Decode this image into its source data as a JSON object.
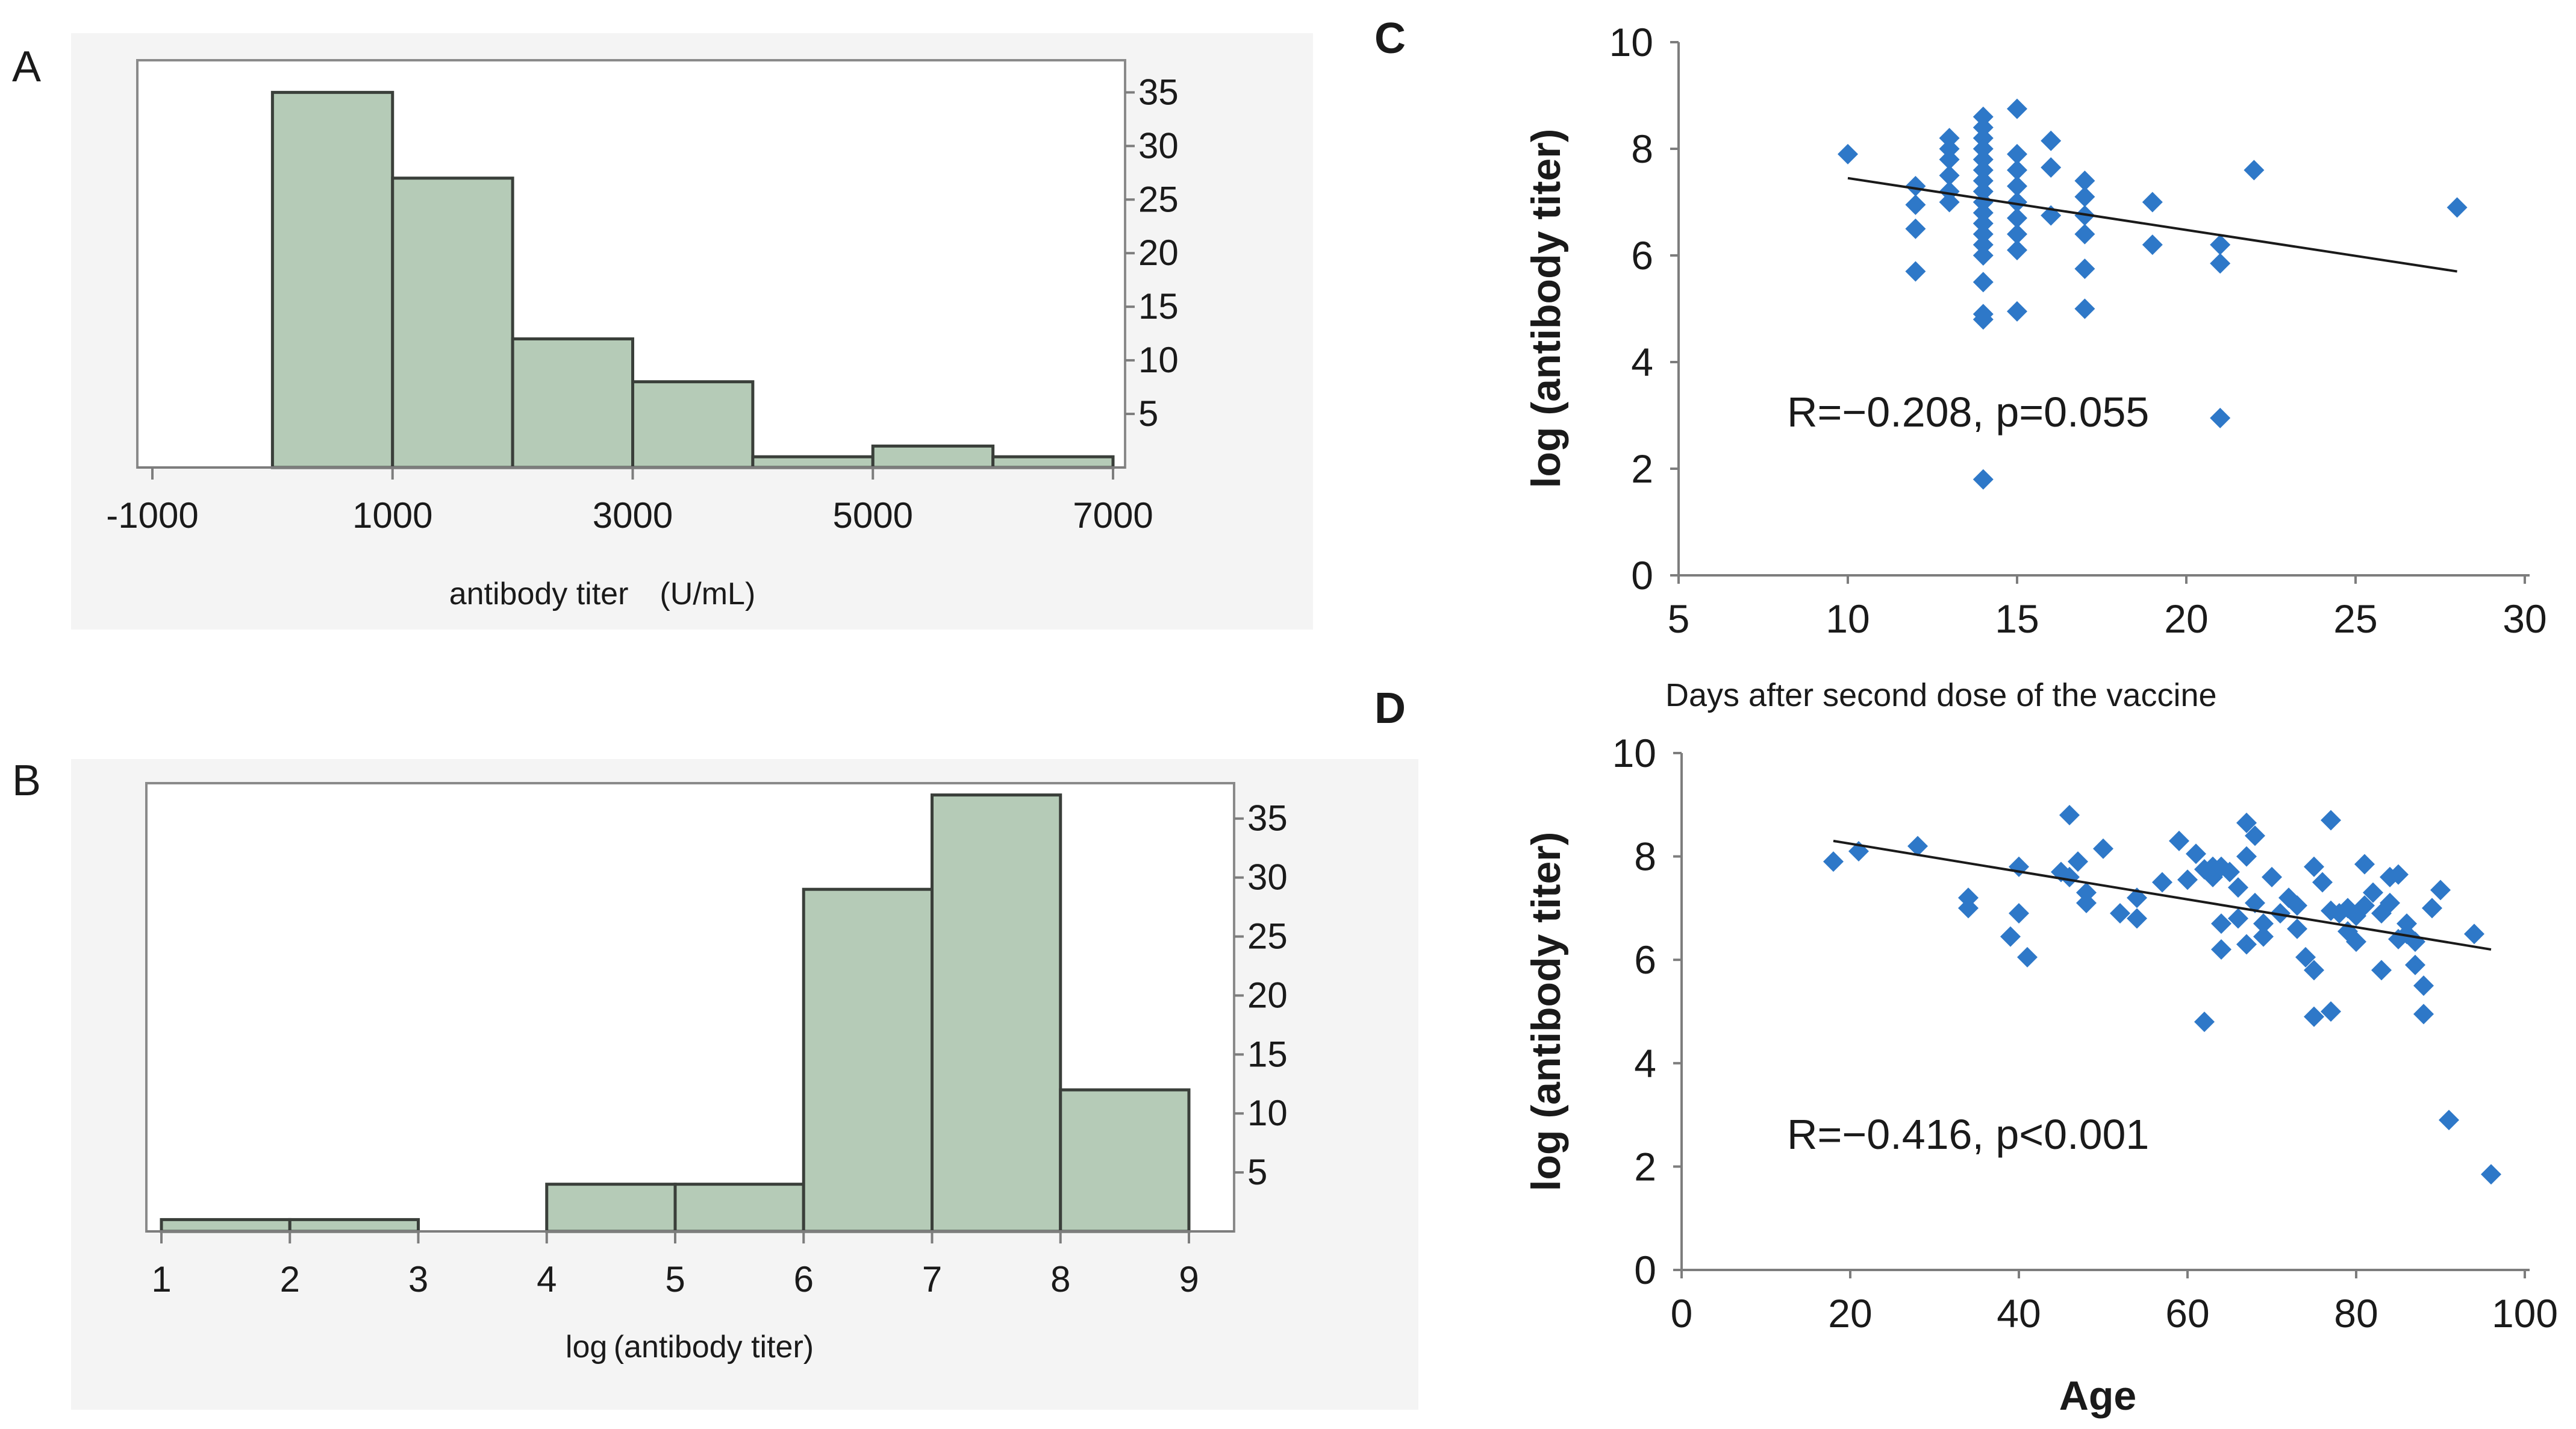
{
  "colors": {
    "bar_fill": "#b5cbb7",
    "bar_stroke": "#3a3f3a",
    "panel_bg": "#f4f4f4",
    "point": "#2e78c8",
    "axis": "#7d7d7d",
    "text": "#1a1a1a"
  },
  "panel_labels": {
    "a": "A",
    "b": "B",
    "c": "C",
    "d": "D"
  },
  "chart_data": [
    {
      "panel": "A",
      "type": "bar",
      "subtype": "histogram",
      "title": "",
      "xlabel": "antibody titer　(U/mL)",
      "ylabel": "",
      "xlim": [
        -1000,
        7000
      ],
      "x_ticks": [
        -1000,
        1000,
        3000,
        5000,
        7000
      ],
      "x_tick_labels": [
        "-1000",
        "1000",
        "3000",
        "5000",
        "7000"
      ],
      "ylim": [
        0,
        38
      ],
      "y_ticks": [
        5,
        10,
        15,
        20,
        25,
        30,
        35
      ],
      "y_tick_labels": [
        "5",
        "10",
        "15",
        "20",
        "25",
        "30",
        "35"
      ],
      "y_axis_side": "right",
      "bins": [
        {
          "from": 0,
          "to": 1000,
          "count": 35
        },
        {
          "from": 1000,
          "to": 2000,
          "count": 27
        },
        {
          "from": 2000,
          "to": 3000,
          "count": 12
        },
        {
          "from": 3000,
          "to": 4000,
          "count": 8
        },
        {
          "from": 4000,
          "to": 5000,
          "count": 1
        },
        {
          "from": 5000,
          "to": 6000,
          "count": 2
        },
        {
          "from": 6000,
          "to": 7000,
          "count": 1
        }
      ]
    },
    {
      "panel": "B",
      "type": "bar",
      "subtype": "histogram",
      "title": "",
      "xlabel": "log (antibody titer)",
      "ylabel": "",
      "xlim": [
        1,
        9
      ],
      "x_ticks": [
        1,
        2,
        3,
        4,
        5,
        6,
        7,
        8,
        9
      ],
      "x_tick_labels": [
        "1",
        "2",
        "3",
        "4",
        "5",
        "6",
        "7",
        "8",
        "9"
      ],
      "ylim": [
        0,
        38
      ],
      "y_ticks": [
        5,
        10,
        15,
        20,
        25,
        30,
        35
      ],
      "y_tick_labels": [
        "5",
        "10",
        "15",
        "20",
        "25",
        "30",
        "35"
      ],
      "y_axis_side": "right",
      "bins": [
        {
          "from": 1,
          "to": 2,
          "count": 1
        },
        {
          "from": 2,
          "to": 3,
          "count": 1
        },
        {
          "from": 4,
          "to": 5,
          "count": 4
        },
        {
          "from": 5,
          "to": 6,
          "count": 4
        },
        {
          "from": 6,
          "to": 7,
          "count": 29
        },
        {
          "from": 7,
          "to": 8,
          "count": 37
        },
        {
          "from": 8,
          "to": 9,
          "count": 12
        }
      ]
    },
    {
      "panel": "C",
      "type": "scatter",
      "title": "",
      "xlabel": "Days after second dose of the vaccine",
      "ylabel": "log (antibody titer)",
      "xlim": [
        5,
        30
      ],
      "x_ticks": [
        5,
        10,
        15,
        20,
        25,
        30
      ],
      "x_tick_labels": [
        "5",
        "10",
        "15",
        "20",
        "25",
        "30"
      ],
      "ylim": [
        0,
        10
      ],
      "y_ticks": [
        0,
        2,
        4,
        6,
        8,
        10
      ],
      "y_tick_labels": [
        "0",
        "2",
        "4",
        "6",
        "8",
        "10"
      ],
      "annotation": "R=−0.208, p=0.055",
      "trendline": {
        "x": [
          10,
          28
        ],
        "y": [
          7.45,
          5.7
        ]
      },
      "points": [
        [
          10,
          7.9
        ],
        [
          12,
          7.3
        ],
        [
          12,
          6.95
        ],
        [
          12,
          6.5
        ],
        [
          12,
          5.7
        ],
        [
          13,
          8.2
        ],
        [
          13,
          8.0
        ],
        [
          13,
          7.8
        ],
        [
          13,
          7.5
        ],
        [
          13,
          7.2
        ],
        [
          13,
          7.0
        ],
        [
          14,
          8.6
        ],
        [
          14,
          8.4
        ],
        [
          14,
          8.2
        ],
        [
          14,
          8.0
        ],
        [
          14,
          7.8
        ],
        [
          14,
          7.6
        ],
        [
          14,
          7.4
        ],
        [
          14,
          7.2
        ],
        [
          14,
          7.0
        ],
        [
          14,
          6.8
        ],
        [
          14,
          6.6
        ],
        [
          14,
          6.4
        ],
        [
          14,
          6.2
        ],
        [
          14,
          6.0
        ],
        [
          14,
          5.5
        ],
        [
          14,
          4.9
        ],
        [
          14,
          4.8
        ],
        [
          14,
          1.8
        ],
        [
          15,
          8.75
        ],
        [
          15,
          7.9
        ],
        [
          15,
          7.6
        ],
        [
          15,
          7.3
        ],
        [
          15,
          7.0
        ],
        [
          15,
          6.7
        ],
        [
          15,
          6.4
        ],
        [
          15,
          6.1
        ],
        [
          15,
          4.95
        ],
        [
          16,
          8.15
        ],
        [
          16,
          7.65
        ],
        [
          16,
          6.75
        ],
        [
          17,
          7.4
        ],
        [
          17,
          7.1
        ],
        [
          17,
          6.75
        ],
        [
          17,
          6.4
        ],
        [
          17,
          5.75
        ],
        [
          17,
          5.0
        ],
        [
          19,
          7.0
        ],
        [
          19,
          6.2
        ],
        [
          21,
          6.2
        ],
        [
          21,
          5.85
        ],
        [
          21,
          2.95
        ],
        [
          22,
          7.6
        ],
        [
          28,
          6.9
        ]
      ]
    },
    {
      "panel": "D",
      "type": "scatter",
      "title": "",
      "xlabel": "Age",
      "ylabel": "log (antibody titer)",
      "xlim": [
        0,
        100
      ],
      "x_ticks": [
        0,
        20,
        40,
        60,
        80,
        100
      ],
      "x_tick_labels": [
        "0",
        "20",
        "40",
        "60",
        "80",
        "100"
      ],
      "ylim": [
        0,
        10
      ],
      "y_ticks": [
        0,
        2,
        4,
        6,
        8,
        10
      ],
      "y_tick_labels": [
        "0",
        "2",
        "4",
        "6",
        "8",
        "10"
      ],
      "annotation": "R=−0.416, p<0.001",
      "trendline": {
        "x": [
          18,
          96
        ],
        "y": [
          8.3,
          6.2
        ]
      },
      "points": [
        [
          18,
          7.9
        ],
        [
          21,
          8.1
        ],
        [
          28,
          8.2
        ],
        [
          34,
          7.2
        ],
        [
          34,
          7.0
        ],
        [
          39,
          6.45
        ],
        [
          40,
          7.8
        ],
        [
          40,
          6.9
        ],
        [
          41,
          6.05
        ],
        [
          45,
          7.7
        ],
        [
          46,
          8.8
        ],
        [
          46,
          7.6
        ],
        [
          47,
          7.9
        ],
        [
          48,
          7.3
        ],
        [
          48,
          7.1
        ],
        [
          50,
          8.15
        ],
        [
          52,
          6.9
        ],
        [
          54,
          7.2
        ],
        [
          54,
          6.8
        ],
        [
          57,
          7.5
        ],
        [
          59,
          8.3
        ],
        [
          60,
          7.55
        ],
        [
          61,
          8.05
        ],
        [
          62,
          7.75
        ],
        [
          62,
          4.8
        ],
        [
          63,
          7.6
        ],
        [
          63,
          7.7
        ],
        [
          63,
          7.8
        ],
        [
          64,
          6.7
        ],
        [
          64,
          6.2
        ],
        [
          64,
          7.8
        ],
        [
          65,
          7.7
        ],
        [
          66,
          7.4
        ],
        [
          66,
          6.8
        ],
        [
          67,
          8.65
        ],
        [
          67,
          8.0
        ],
        [
          67,
          6.3
        ],
        [
          68,
          7.1
        ],
        [
          68,
          8.4
        ],
        [
          69,
          6.7
        ],
        [
          69,
          6.45
        ],
        [
          70,
          7.6
        ],
        [
          71,
          6.9
        ],
        [
          72,
          7.2
        ],
        [
          73,
          7.05
        ],
        [
          73,
          6.6
        ],
        [
          74,
          6.05
        ],
        [
          75,
          7.8
        ],
        [
          75,
          5.8
        ],
        [
          75,
          4.9
        ],
        [
          76,
          7.5
        ],
        [
          77,
          8.7
        ],
        [
          77,
          6.95
        ],
        [
          77,
          5.0
        ],
        [
          78,
          6.9
        ],
        [
          79,
          7.0
        ],
        [
          79,
          6.55
        ],
        [
          80,
          6.85
        ],
        [
          80,
          6.35
        ],
        [
          81,
          7.85
        ],
        [
          81,
          7.05
        ],
        [
          82,
          7.3
        ],
        [
          83,
          6.9
        ],
        [
          83,
          5.8
        ],
        [
          84,
          7.6
        ],
        [
          84,
          7.1
        ],
        [
          85,
          7.65
        ],
        [
          85,
          6.4
        ],
        [
          86,
          6.7
        ],
        [
          86,
          6.5
        ],
        [
          87,
          5.9
        ],
        [
          87,
          6.35
        ],
        [
          88,
          5.5
        ],
        [
          88,
          4.95
        ],
        [
          89,
          7.0
        ],
        [
          90,
          7.35
        ],
        [
          91,
          2.9
        ],
        [
          94,
          6.5
        ],
        [
          96,
          1.85
        ]
      ]
    }
  ]
}
